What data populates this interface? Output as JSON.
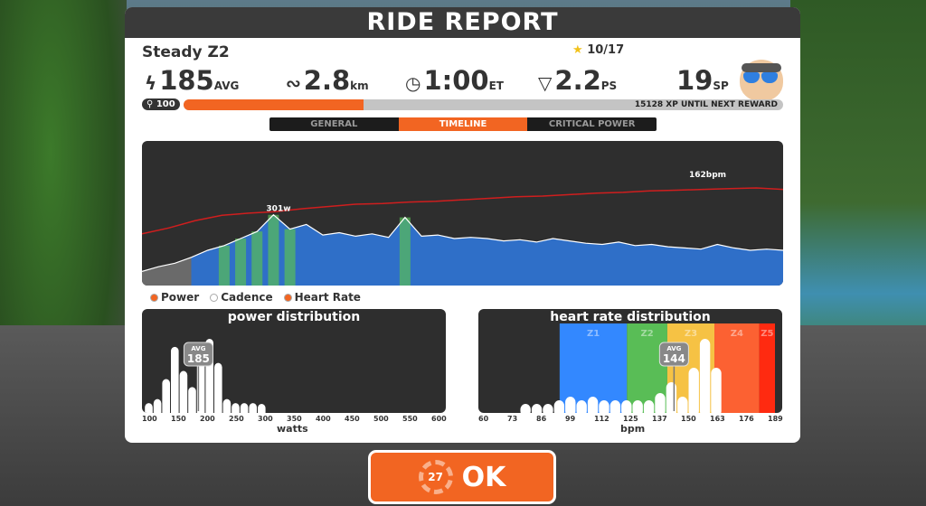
{
  "title": "RIDE REPORT",
  "workout_name": "Steady Z2",
  "stars": "10/17",
  "stats": [
    {
      "icon": "lightning-icon",
      "value": "185",
      "unit": "AVG"
    },
    {
      "icon": "route-icon",
      "value": "2.8",
      "unit": "km"
    },
    {
      "icon": "clock-icon",
      "value": "1:00",
      "unit": "ET"
    },
    {
      "icon": "pizza-icon",
      "value": "2.2",
      "unit": "PS"
    },
    {
      "icon": "",
      "value": "19",
      "unit": "SP"
    }
  ],
  "level": "100",
  "xp_progress_percent": 30,
  "xp_text": "15128 XP UNTIL NEXT REWARD",
  "tabs": [
    {
      "label": "GENERAL",
      "active": false
    },
    {
      "label": "TIMELINE",
      "active": true
    },
    {
      "label": "CRITICAL POWER",
      "active": false
    }
  ],
  "timeline": {
    "power_peak_label": "301w",
    "hr_peak_label": "162bpm",
    "hr_bpm": [
      100,
      108,
      118,
      125,
      128,
      130,
      134,
      137,
      140,
      141,
      143,
      144,
      146,
      148,
      150,
      151,
      153,
      155,
      156,
      158,
      159,
      160,
      161,
      162,
      160
    ],
    "power_w": [
      60,
      80,
      95,
      120,
      150,
      170,
      200,
      230,
      301,
      240,
      260,
      215,
      225,
      210,
      220,
      205,
      290,
      210,
      215,
      200,
      205,
      200,
      190,
      195,
      185,
      200,
      190,
      180,
      175,
      185,
      170,
      175,
      165,
      160,
      155,
      175,
      160,
      150,
      155,
      150
    ],
    "colors": {
      "hr": "#d01e1e",
      "power_fill": "#2f6fc8",
      "z1": "#3388ff",
      "z2": "#59bd56",
      "z3": "#f6c244",
      "z4": "#fc6132",
      "z5": "#ff2a10"
    }
  },
  "legend": [
    {
      "label": "Power",
      "on": true
    },
    {
      "label": "Cadence",
      "on": false
    },
    {
      "label": "Heart Rate",
      "on": true
    }
  ],
  "power_distribution": {
    "title": "power distribution",
    "avg_label": "AVG",
    "avg": "185",
    "xlabel": "watts",
    "ticks": [
      "100",
      "150",
      "200",
      "250",
      "300",
      "350",
      "400",
      "450",
      "500",
      "550",
      "600"
    ],
    "bins_w": [
      100,
      115,
      130,
      145,
      160,
      175,
      190,
      205,
      220,
      235,
      250,
      265,
      280,
      295
    ],
    "counts": [
      1,
      1.5,
      4,
      8,
      5,
      3,
      8,
      9,
      6,
      1.5,
      1,
      1,
      1,
      0.5
    ]
  },
  "hr_distribution": {
    "title": "heart rate distribution",
    "avg_label": "AVG",
    "avg": "144",
    "xlabel": "bpm",
    "ticks": [
      "60",
      "73",
      "86",
      "99",
      "112",
      "125",
      "137",
      "150",
      "163",
      "176",
      "189"
    ],
    "zones": [
      {
        "label": "Z1",
        "from": 93,
        "to": 123
      },
      {
        "label": "Z2",
        "from": 123,
        "to": 141
      },
      {
        "label": "Z3",
        "from": 141,
        "to": 162
      },
      {
        "label": "Z4",
        "from": 162,
        "to": 182
      },
      {
        "label": "Z5",
        "from": 182,
        "to": 189
      }
    ],
    "bins_bpm": [
      78,
      83,
      88,
      93,
      98,
      103,
      108,
      113,
      118,
      123,
      128,
      133,
      138,
      143,
      148,
      153,
      158,
      163
    ],
    "counts": [
      1,
      1,
      1,
      1.5,
      2,
      1.5,
      2,
      1.5,
      1.5,
      1.5,
      1.5,
      1.5,
      2.5,
      4,
      2,
      6,
      10,
      6
    ]
  },
  "ok_button": {
    "label": "OK",
    "countdown": "27"
  }
}
